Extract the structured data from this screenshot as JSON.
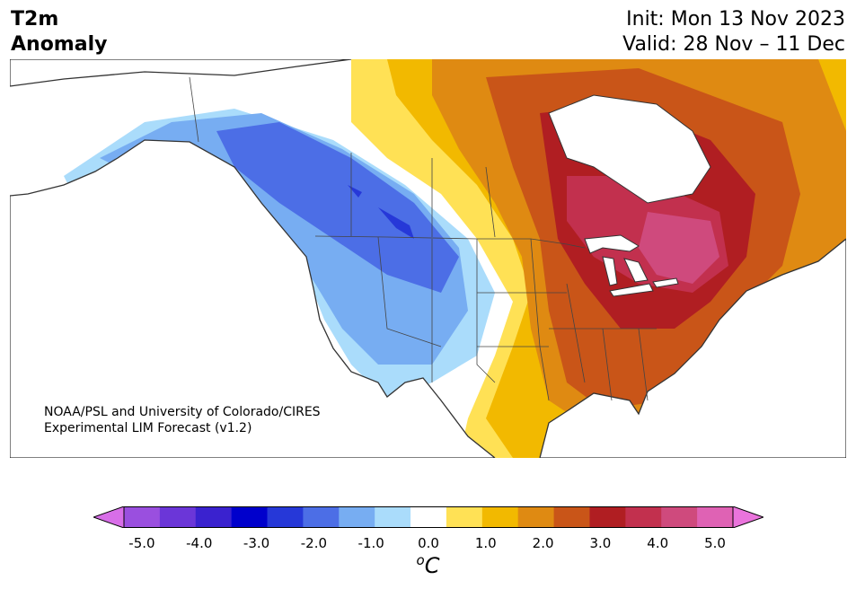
{
  "header": {
    "variable": "T2m",
    "subtitle": "Anomaly",
    "init": "Init: Mon 13 Nov 2023",
    "valid": "Valid: 28 Nov – 11 Dec"
  },
  "credit": {
    "line1": "NOAA/PSL and University of Colorado/CIRES",
    "line2": "Experimental LIM Forecast (v1.2)"
  },
  "colorbar": {
    "colors": [
      "#d86ee8",
      "#9a4fdf",
      "#6b36d8",
      "#3a22cf",
      "#0000cc",
      "#2638d8",
      "#4c6ee6",
      "#77adf2",
      "#aadcfb",
      "#ffffff",
      "#ffe155",
      "#f2b900",
      "#df8a12",
      "#c95518",
      "#b01e22",
      "#c2304e",
      "#cf4a7d",
      "#df62b4",
      "#ea74dc"
    ],
    "tick_labels": [
      "-5.0",
      "-4.0",
      "-3.0",
      "-2.0",
      "-1.0",
      "0.0",
      "1.0",
      "2.0",
      "3.0",
      "4.0",
      "5.0"
    ],
    "unit_base": "C",
    "unit_sup": "o"
  }
}
